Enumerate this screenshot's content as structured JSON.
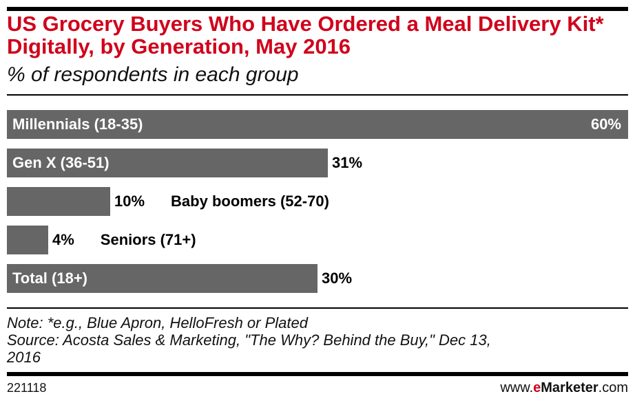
{
  "header": {
    "title": "US Grocery Buyers Who Have Ordered a Meal Delivery Kit* Digitally, by Generation, May 2016",
    "subtitle": "% of respondents in each group"
  },
  "chart_data": {
    "type": "bar",
    "orientation": "horizontal",
    "categories": [
      "Millennials (18-35)",
      "Gen X (36-51)",
      "Baby boomers (52-70)",
      "Seniors (71+)",
      "Total (18+)"
    ],
    "values": [
      60,
      31,
      10,
      4,
      30
    ],
    "value_labels": [
      "60%",
      "31%",
      "10%",
      "4%",
      "30%"
    ],
    "xlim": [
      0,
      60
    ],
    "bar_color": "#666666",
    "grid": false,
    "legend": "none"
  },
  "notes": {
    "note": "Note: *e.g., Blue Apron, HelloFresh or Plated",
    "source_line1": "Source: Acosta Sales & Marketing, \"The Why? Behind the Buy,\" Dec 13,",
    "source_line2": "2016"
  },
  "footer": {
    "chart_id": "221118",
    "brand_prefix": "www.",
    "brand_accent": "e",
    "brand_name": "Marketer",
    "brand_suffix": ".com"
  },
  "colors": {
    "title": "#d0021b",
    "rules": "#000000"
  }
}
